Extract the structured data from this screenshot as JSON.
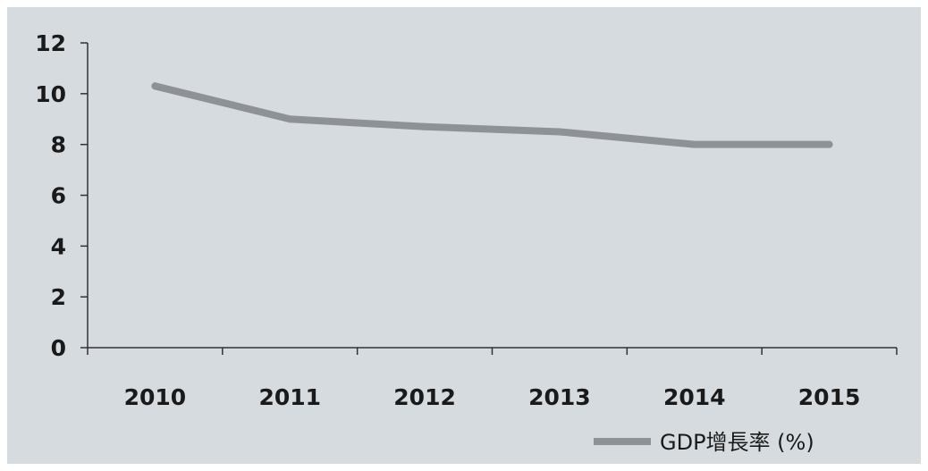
{
  "chart_data": {
    "type": "line",
    "x": [
      "2010",
      "2011",
      "2012",
      "2013",
      "2014",
      "2015"
    ],
    "series": [
      {
        "name": "GDP增長率 (%)",
        "values": [
          10.3,
          9.0,
          8.7,
          8.5,
          8.0,
          8.0
        ],
        "color": "#8e9296"
      }
    ],
    "ylim": [
      0,
      12
    ],
    "yticks": [
      0,
      2,
      4,
      6,
      8,
      10,
      12
    ],
    "grid": false,
    "legend": "bottom-right",
    "background_color": "#d6dbdf",
    "axis_color": "#333333"
  }
}
